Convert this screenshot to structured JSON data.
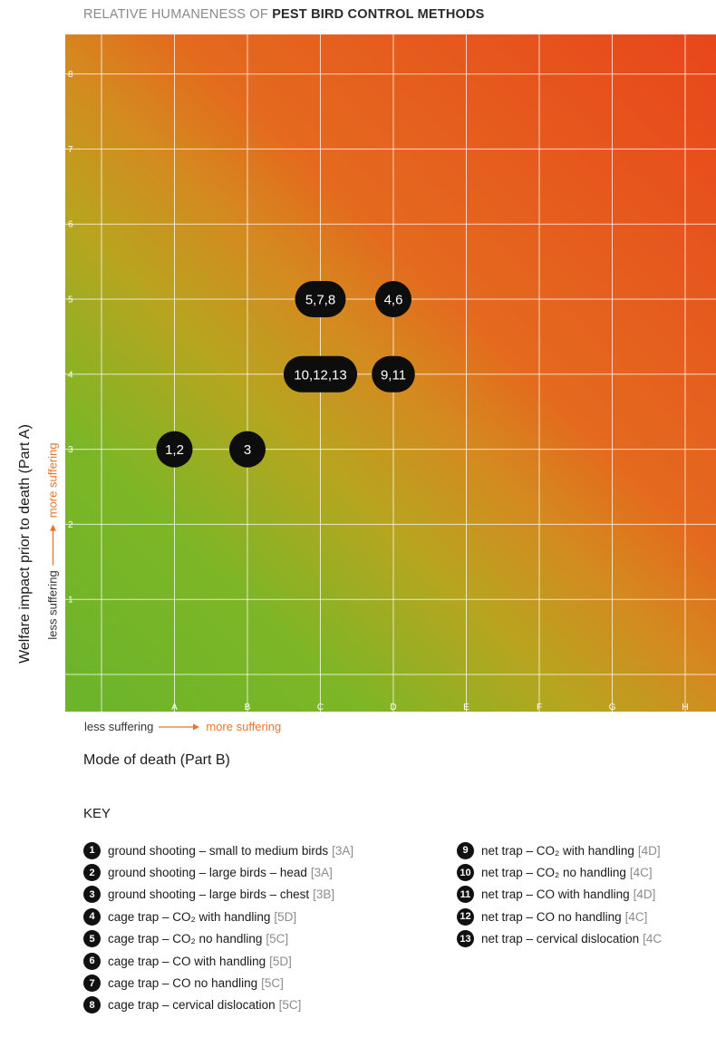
{
  "title": {
    "light": "RELATIVE HUMANENESS OF ",
    "bold": "PEST BIRD CONTROL METHODS"
  },
  "chart_data": {
    "type": "scatter",
    "title": "RELATIVE HUMANENESS OF PEST BIRD CONTROL METHODS",
    "xlabel": "Mode of death (Part B)",
    "ylabel": "Welfare impact prior to death (Part A)",
    "x_categories": [
      "A",
      "B",
      "C",
      "D",
      "E",
      "F",
      "G",
      "H"
    ],
    "y_ticks": [
      "1",
      "2",
      "3",
      "4",
      "5",
      "6",
      "7",
      "8"
    ],
    "x_range_note": "less suffering → more suffering",
    "y_range_note": "less suffering → more suffering",
    "grid": true,
    "background": "gradient green (lower-left, less suffering) to red-orange (upper-right, more suffering)",
    "points": [
      {
        "label": "1,2",
        "x": "A",
        "y": 3
      },
      {
        "label": "3",
        "x": "B",
        "y": 3
      },
      {
        "label": "5,7,8",
        "x": "C",
        "y": 5
      },
      {
        "label": "4,6",
        "x": "D",
        "y": 5
      },
      {
        "label": "10,12,13",
        "x": "C",
        "y": 4
      },
      {
        "label": "9,11",
        "x": "D",
        "y": 4
      }
    ]
  },
  "axes": {
    "x_label": "Mode of death (Part B)",
    "y_label": "Welfare impact prior to death (Part A)",
    "less": "less suffering",
    "more": "more suffering"
  },
  "colors": {
    "green": "#6fb52c",
    "yellow": "#c4a21e",
    "orange": "#e2741f",
    "red": "#e8461c",
    "marker": "#0d0d0d",
    "accent_text": "#e8742a"
  },
  "key": {
    "title": "KEY",
    "left": [
      {
        "num": "1",
        "text": "ground shooting – small to medium birds",
        "code": "[3A]"
      },
      {
        "num": "2",
        "text": "ground shooting – large birds – head",
        "code": "[3A]"
      },
      {
        "num": "3",
        "text": "ground shooting – large birds – chest",
        "code": "[3B]"
      },
      {
        "num": "4",
        "text": "cage trap – CO₂ with handling",
        "code": "[5D]"
      },
      {
        "num": "5",
        "text": "cage trap – CO₂ no handling",
        "code": "[5C]"
      },
      {
        "num": "6",
        "text": "cage trap – CO with handling",
        "code": "[5D]"
      },
      {
        "num": "7",
        "text": "cage trap – CO no handling",
        "code": "[5C]"
      },
      {
        "num": "8",
        "text": "cage trap – cervical dislocation",
        "code": "[5C]"
      }
    ],
    "right": [
      {
        "num": "9",
        "text": "net trap – CO₂ with handling",
        "code": "[4D]"
      },
      {
        "num": "10",
        "text": "net trap – CO₂ no handling",
        "code": "[4C]"
      },
      {
        "num": "11",
        "text": "net trap – CO with handling",
        "code": "[4D]"
      },
      {
        "num": "12",
        "text": "net trap – CO no handling",
        "code": "[4C]"
      },
      {
        "num": "13",
        "text": "net trap – cervical dislocation",
        "code": "[4C"
      }
    ]
  }
}
